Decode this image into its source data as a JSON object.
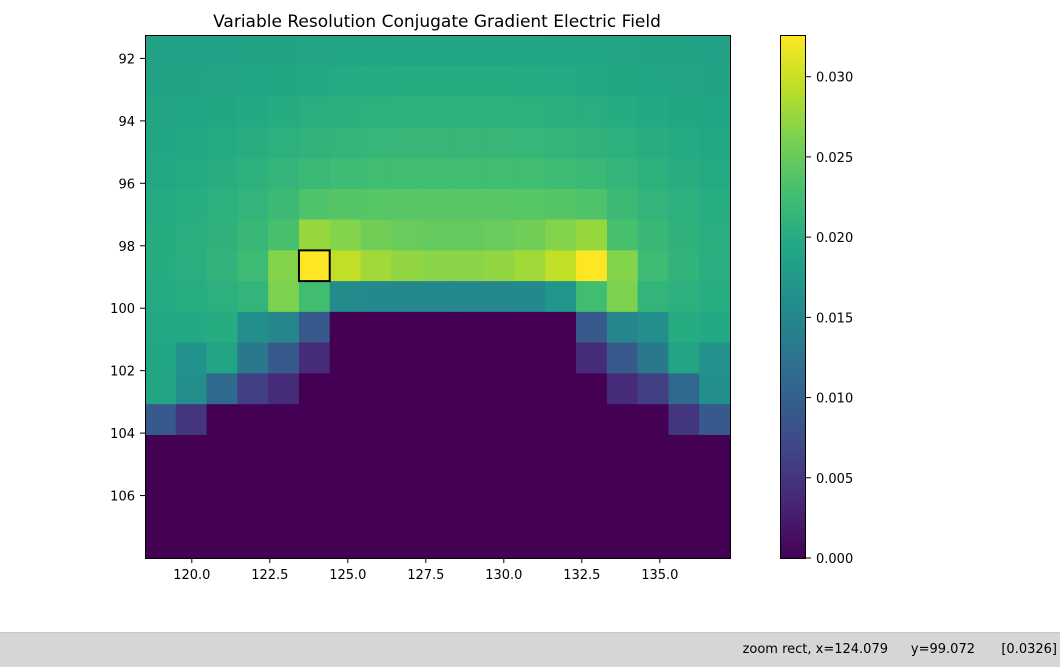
{
  "statusbar": {
    "mode": "zoom rect, x=124.079",
    "y": "y=99.072",
    "value": "[0.0326]"
  },
  "chart_data": {
    "type": "heatmap",
    "title": "Variable Resolution Conjugate Gradient Electric Field",
    "xlabel": "",
    "ylabel": "",
    "colormap": "viridis",
    "x_edges": [
      118.5,
      137.25
    ],
    "y_edges": [
      91.25,
      108.0
    ],
    "xlim": [
      118.5,
      137.25
    ],
    "ylim": [
      108.0,
      91.25
    ],
    "x_ticks": [
      120.0,
      122.5,
      125.0,
      127.5,
      130.0,
      132.5,
      135.0
    ],
    "x_tick_labels": [
      "120.0",
      "122.5",
      "125.0",
      "127.5",
      "130.0",
      "132.5",
      "135.0"
    ],
    "y_ticks": [
      92,
      94,
      96,
      98,
      100,
      102,
      104,
      106
    ],
    "y_tick_labels": [
      "92",
      "94",
      "96",
      "98",
      "100",
      "102",
      "104",
      "106"
    ],
    "colorbar": {
      "min": 0.0,
      "max": 0.0326,
      "ticks": [
        0.0,
        0.005,
        0.01,
        0.015,
        0.02,
        0.025,
        0.03
      ],
      "tick_labels": [
        "0.000",
        "0.005",
        "0.010",
        "0.015",
        "0.020",
        "0.025",
        "0.030"
      ]
    },
    "highlight_cell": {
      "row": 7,
      "col": 5,
      "value": 0.0326
    },
    "values": [
      [
        0.0185,
        0.0186,
        0.0187,
        0.0188,
        0.0189,
        0.019,
        0.0191,
        0.0192,
        0.0193,
        0.0193,
        0.0193,
        0.0193,
        0.0193,
        0.0192,
        0.0191,
        0.019,
        0.0189,
        0.0188,
        0.0186
      ],
      [
        0.0188,
        0.0189,
        0.019,
        0.0192,
        0.0194,
        0.0196,
        0.0198,
        0.0199,
        0.02,
        0.02,
        0.02,
        0.02,
        0.0199,
        0.0198,
        0.0196,
        0.0194,
        0.0192,
        0.019,
        0.0189
      ],
      [
        0.019,
        0.0192,
        0.0194,
        0.0197,
        0.02,
        0.0203,
        0.0205,
        0.0207,
        0.0208,
        0.0208,
        0.0208,
        0.0208,
        0.0207,
        0.0205,
        0.0203,
        0.02,
        0.0197,
        0.0194,
        0.0192
      ],
      [
        0.0193,
        0.0195,
        0.0198,
        0.0202,
        0.0206,
        0.021,
        0.0213,
        0.0215,
        0.0216,
        0.0216,
        0.0216,
        0.0216,
        0.0215,
        0.0213,
        0.021,
        0.0206,
        0.0202,
        0.0198,
        0.0195
      ],
      [
        0.0196,
        0.0198,
        0.0202,
        0.0207,
        0.0213,
        0.0219,
        0.0222,
        0.0224,
        0.0225,
        0.0225,
        0.0225,
        0.0225,
        0.0224,
        0.0222,
        0.0219,
        0.0213,
        0.0207,
        0.0202,
        0.0198
      ],
      [
        0.0198,
        0.0201,
        0.0206,
        0.0212,
        0.022,
        0.0235,
        0.0238,
        0.0239,
        0.024,
        0.024,
        0.024,
        0.024,
        0.0239,
        0.0238,
        0.0235,
        0.022,
        0.0212,
        0.0206,
        0.0201
      ],
      [
        0.02,
        0.0203,
        0.0209,
        0.0217,
        0.023,
        0.0275,
        0.0265,
        0.0255,
        0.025,
        0.0248,
        0.0248,
        0.025,
        0.0255,
        0.0265,
        0.0275,
        0.023,
        0.0217,
        0.0209,
        0.0203
      ],
      [
        0.02,
        0.0204,
        0.0211,
        0.0222,
        0.0265,
        0.0326,
        0.0295,
        0.028,
        0.0272,
        0.0268,
        0.0268,
        0.0272,
        0.028,
        0.0295,
        0.0326,
        0.0265,
        0.0222,
        0.0211,
        0.0204
      ],
      [
        0.0198,
        0.0201,
        0.0206,
        0.0212,
        0.0262,
        0.0225,
        0.0155,
        0.0152,
        0.0151,
        0.0151,
        0.0151,
        0.0151,
        0.0152,
        0.017,
        0.0225,
        0.0262,
        0.0212,
        0.0206,
        0.0201
      ],
      [
        0.0195,
        0.0197,
        0.02,
        0.016,
        0.015,
        0.009,
        0.0,
        0.0,
        0.0,
        0.0,
        0.0,
        0.0,
        0.0,
        0.0,
        0.009,
        0.015,
        0.016,
        0.02,
        0.0197
      ],
      [
        0.0193,
        0.0165,
        0.019,
        0.013,
        0.009,
        0.004,
        0.0,
        0.0,
        0.0,
        0.0,
        0.0,
        0.0,
        0.0,
        0.0,
        0.004,
        0.009,
        0.013,
        0.019,
        0.0165
      ],
      [
        0.019,
        0.016,
        0.011,
        0.006,
        0.004,
        0.0,
        0.0,
        0.0,
        0.0,
        0.0,
        0.0,
        0.0,
        0.0,
        0.0,
        0.0,
        0.004,
        0.006,
        0.011,
        0.016
      ],
      [
        0.009,
        0.005,
        0.0,
        0.0,
        0.0,
        0.0,
        0.0,
        0.0,
        0.0,
        0.0,
        0.0,
        0.0,
        0.0,
        0.0,
        0.0,
        0.0,
        0.0,
        0.005,
        0.009
      ],
      [
        0.0,
        0.0,
        0.0,
        0.0,
        0.0,
        0.0,
        0.0,
        0.0,
        0.0,
        0.0,
        0.0,
        0.0,
        0.0,
        0.0,
        0.0,
        0.0,
        0.0,
        0.0,
        0.0
      ],
      [
        0.0,
        0.0,
        0.0,
        0.0,
        0.0,
        0.0,
        0.0,
        0.0,
        0.0,
        0.0,
        0.0,
        0.0,
        0.0,
        0.0,
        0.0,
        0.0,
        0.0,
        0.0,
        0.0
      ],
      [
        0.0,
        0.0,
        0.0,
        0.0,
        0.0,
        0.0,
        0.0,
        0.0,
        0.0,
        0.0,
        0.0,
        0.0,
        0.0,
        0.0,
        0.0,
        0.0,
        0.0,
        0.0,
        0.0
      ],
      [
        0.0,
        0.0,
        0.0,
        0.0,
        0.0,
        0.0,
        0.0,
        0.0,
        0.0,
        0.0,
        0.0,
        0.0,
        0.0,
        0.0,
        0.0,
        0.0,
        0.0,
        0.0,
        0.0
      ]
    ]
  }
}
